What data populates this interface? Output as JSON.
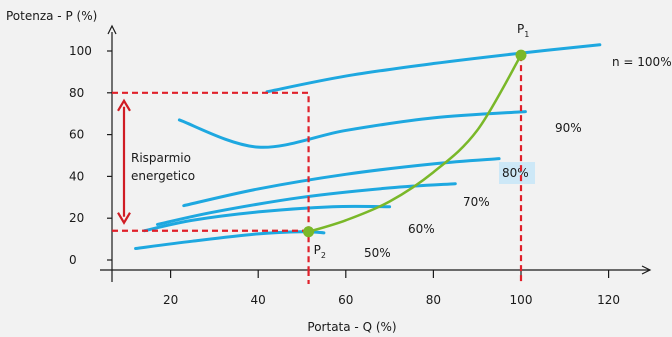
{
  "chart_data": {
    "type": "line",
    "ylabel": "Potenza - P (%)",
    "xlabel": "Portata - Q (%)",
    "xlim": [
      -3,
      123
    ],
    "ylim": [
      -8,
      108
    ],
    "x_ticks": [
      20,
      40,
      60,
      80,
      100,
      120
    ],
    "y_ticks": [
      0,
      20,
      40,
      60,
      80,
      100
    ],
    "series": [
      {
        "name": "n = 100%",
        "x": [
          42,
          60,
          80,
          100,
          118
        ],
        "y": [
          80.5,
          88,
          94,
          99,
          103
        ]
      },
      {
        "name": "90%",
        "x": [
          22,
          40,
          60,
          80,
          101
        ],
        "y": [
          67,
          54,
          62,
          68,
          71
        ]
      },
      {
        "name": "80%",
        "x": [
          23,
          40,
          60,
          80,
          95
        ],
        "y": [
          26,
          34,
          41,
          46,
          48.5
        ]
      },
      {
        "name": "70%",
        "x": [
          17,
          30,
          50,
          70,
          85
        ],
        "y": [
          17,
          23,
          30,
          34.5,
          36.5
        ]
      },
      {
        "name": "60%",
        "x": [
          14,
          25,
          40,
          57,
          70
        ],
        "y": [
          14,
          19,
          23,
          25.5,
          25.5
        ]
      },
      {
        "name": "50%",
        "x": [
          12,
          25,
          40,
          50,
          55
        ],
        "y": [
          5.5,
          9,
          12.5,
          13.5,
          13
        ]
      }
    ],
    "curve_labels": [
      "n = 100%",
      "90%",
      "80%",
      "70%",
      "60%",
      "50%"
    ],
    "system_curve": {
      "x": [
        51.5,
        60,
        70,
        80,
        90,
        100
      ],
      "y": [
        13.5,
        19,
        28,
        42,
        62,
        98
      ]
    },
    "points": [
      {
        "label": "P",
        "sub": "1",
        "x": 100,
        "y": 98
      },
      {
        "label": "P",
        "sub": "2",
        "x": 51.5,
        "y": 13.5
      }
    ],
    "annotation": {
      "line1": "Risparmio",
      "line2": "energetico",
      "from_y": 80,
      "to_y": 14
    },
    "reference_lines": {
      "x_p1": 100,
      "x_p2": 51.5,
      "y_top": 80,
      "y_bottom": 14
    }
  }
}
